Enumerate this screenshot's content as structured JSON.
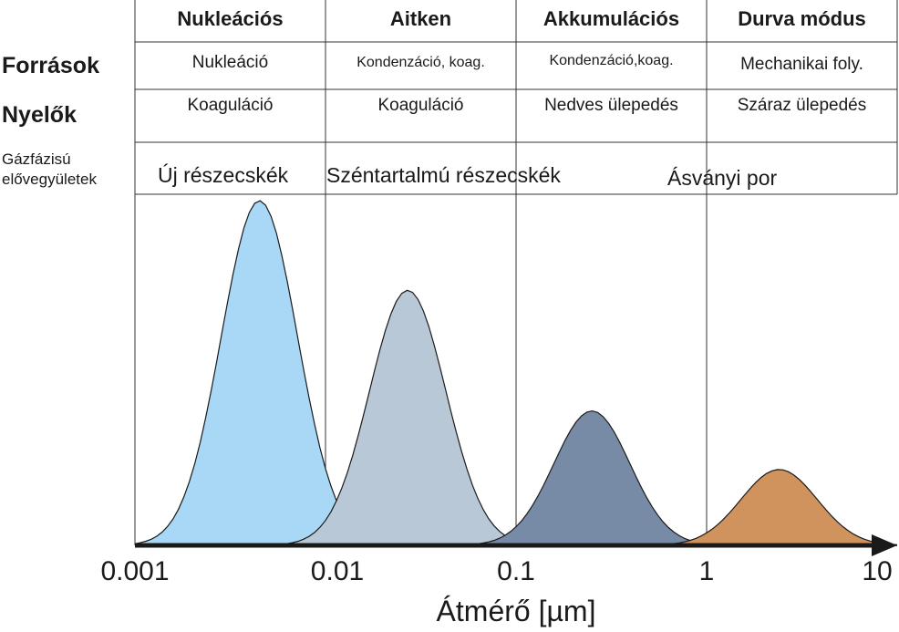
{
  "table": {
    "columns": [
      "Nukleációs",
      "Aitken",
      "Akkumulációs",
      "Durva módus"
    ],
    "row_labels": {
      "sources": "Források",
      "sinks": "Nyelők"
    },
    "sources": [
      "Nukleáció",
      "Kondenzáció, koag.",
      "Kondenzáció,koag.",
      "Mechanikai foly."
    ],
    "sinks": [
      "Koaguláció",
      "Koaguláció",
      "Nedves ülepedés",
      "Száraz ülepedés"
    ]
  },
  "gas_label_line1": "Gázfázisú",
  "gas_label_line2": "elővegyületek",
  "categories": [
    "Új részecskék",
    "Széntartalmú részecskék",
    "Ásványi por"
  ],
  "chart_data": {
    "type": "area",
    "xscale": "log",
    "xlim": [
      0.001,
      10
    ],
    "x_ticks": [
      "0.001",
      "0.01",
      "0.1",
      "1",
      "10"
    ],
    "xlabel": "Átmérő [µm]",
    "modes": [
      {
        "peak_diameter": 0.0045,
        "relative_height": 1.0,
        "color": "#a8d8f5"
      },
      {
        "peak_diameter": 0.027,
        "relative_height": 0.74,
        "color": "#b9c8d6"
      },
      {
        "peak_diameter": 0.25,
        "relative_height": 0.39,
        "color": "#778aa6"
      },
      {
        "peak_diameter": 2.4,
        "relative_height": 0.22,
        "color": "#d1935e"
      }
    ]
  }
}
